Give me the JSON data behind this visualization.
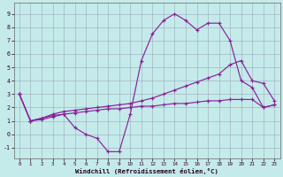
{
  "xlabel": "Windchill (Refroidissement éolien,°C)",
  "bg_color": "#c5eaea",
  "grid_color": "#99aabb",
  "line_color": "#882299",
  "xlim": [
    -0.5,
    23.5
  ],
  "ylim": [
    -1.8,
    9.8
  ],
  "xticks": [
    0,
    1,
    2,
    3,
    4,
    5,
    6,
    7,
    8,
    9,
    10,
    11,
    12,
    13,
    14,
    15,
    16,
    17,
    18,
    19,
    20,
    21,
    22,
    23
  ],
  "yticks": [
    -1,
    0,
    1,
    2,
    3,
    4,
    5,
    6,
    7,
    8,
    9
  ],
  "line1_x": [
    0,
    1,
    2,
    3,
    4,
    5,
    6,
    7,
    8,
    9,
    10,
    11,
    12,
    13,
    14,
    15,
    16,
    17,
    18,
    19,
    20,
    21,
    22,
    23
  ],
  "line1_y": [
    3.0,
    1.0,
    1.2,
    1.4,
    1.5,
    0.5,
    0.0,
    -0.3,
    -1.3,
    -1.3,
    1.5,
    5.5,
    7.5,
    8.5,
    9.0,
    8.5,
    7.8,
    8.3,
    8.3,
    7.0,
    4.0,
    3.5,
    2.0,
    2.2
  ],
  "line2_x": [
    0,
    1,
    2,
    3,
    4,
    5,
    6,
    7,
    8,
    9,
    10,
    11,
    12,
    13,
    14,
    15,
    16,
    17,
    18,
    19,
    20,
    21,
    22,
    23
  ],
  "line2_y": [
    3.0,
    1.0,
    1.2,
    1.5,
    1.7,
    1.8,
    1.9,
    2.0,
    2.1,
    2.2,
    2.3,
    2.5,
    2.7,
    3.0,
    3.3,
    3.6,
    3.9,
    4.2,
    4.5,
    5.2,
    5.5,
    4.0,
    3.8,
    2.5
  ],
  "line3_x": [
    0,
    1,
    2,
    3,
    4,
    5,
    6,
    7,
    8,
    9,
    10,
    11,
    12,
    13,
    14,
    15,
    16,
    17,
    18,
    19,
    20,
    21,
    22,
    23
  ],
  "line3_y": [
    3.0,
    1.0,
    1.1,
    1.3,
    1.5,
    1.6,
    1.7,
    1.8,
    1.9,
    1.9,
    2.0,
    2.1,
    2.1,
    2.2,
    2.3,
    2.3,
    2.4,
    2.5,
    2.5,
    2.6,
    2.6,
    2.6,
    2.0,
    2.2
  ]
}
